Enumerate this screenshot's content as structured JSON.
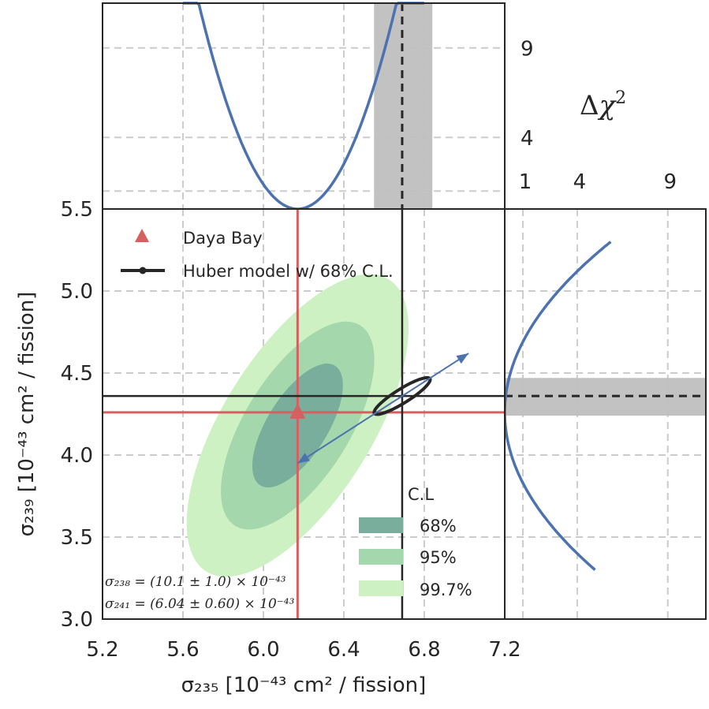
{
  "colors": {
    "contour_68": "#79ae9c",
    "contour_95": "#a4d7ac",
    "contour_997": "#cdf1c3",
    "daya_bay": "#d65f5f",
    "huber": "#262626",
    "profile": "#4c72b0",
    "band": "#bfbfbf",
    "grid": "#cccccc"
  },
  "chart_data": [
    {
      "id": "main",
      "type": "contour",
      "xlabel": "σ₂₃₅ [10⁻⁴³ cm² / fission]",
      "ylabel": "σ₂₃₉ [10⁻⁴³ cm² / fission]",
      "xlim": [
        5.2,
        7.2
      ],
      "ylim": [
        3.0,
        5.5
      ],
      "x_ticks": [
        5.2,
        5.6,
        6.0,
        6.4,
        6.8,
        7.2
      ],
      "x_tick_labels": [
        "5.2",
        "5.6",
        "6.0",
        "6.4",
        "6.8",
        "7.2"
      ],
      "y_ticks": [
        3.0,
        3.5,
        4.0,
        4.5,
        5.0,
        5.5
      ],
      "y_tick_labels": [
        "3.0",
        "3.5",
        "4.0",
        "4.5",
        "5.0",
        "5.5"
      ],
      "daya_bay": {
        "label": "Daya Bay",
        "x": 6.17,
        "y": 4.26
      },
      "huber": {
        "label": "Huber model w/ 68% C.L.",
        "x": 6.69,
        "y": 4.36
      },
      "contours": [
        {
          "label": "99.7%",
          "cx": 6.17,
          "cy": 4.18,
          "rx": 0.37,
          "ry": 1.05,
          "angle_deg": 32
        },
        {
          "label": "95%",
          "cx": 6.17,
          "cy": 4.18,
          "rx": 0.26,
          "ry": 0.72,
          "angle_deg": 32
        },
        {
          "label": "68%",
          "cx": 6.17,
          "cy": 4.18,
          "rx": 0.15,
          "ry": 0.43,
          "angle_deg": 32
        }
      ],
      "huber_ellipse": {
        "cx": 6.69,
        "cy": 4.36,
        "rx": 0.035,
        "ry": 0.2,
        "angle_deg": 58
      },
      "eigen_arrow": {
        "from": [
          6.17,
          3.95
        ],
        "to": [
          7.02,
          4.62
        ]
      },
      "legend_title": "C.L",
      "annotation_line1": "σ₂₃₈ = (10.1 ± 1.0) × 10⁻⁴³",
      "annotation_line2": "σ₂₄₁ = (6.04 ± 0.60) × 10⁻⁴³"
    },
    {
      "id": "top_profile",
      "type": "line",
      "ylabel": "Δχ²",
      "y_ticks": [
        4,
        9
      ],
      "y_tick_labels": [
        "4",
        "9"
      ],
      "minimum_x": 6.17,
      "huber_x": 6.69,
      "huber_band": [
        6.55,
        6.84
      ]
    },
    {
      "id": "right_profile",
      "type": "line",
      "x_ticks": [
        1,
        4,
        9
      ],
      "x_tick_labels": [
        "1",
        "4",
        "9"
      ],
      "minimum_y": 4.26,
      "huber_y": 4.36,
      "huber_band": [
        4.24,
        4.47
      ]
    }
  ]
}
